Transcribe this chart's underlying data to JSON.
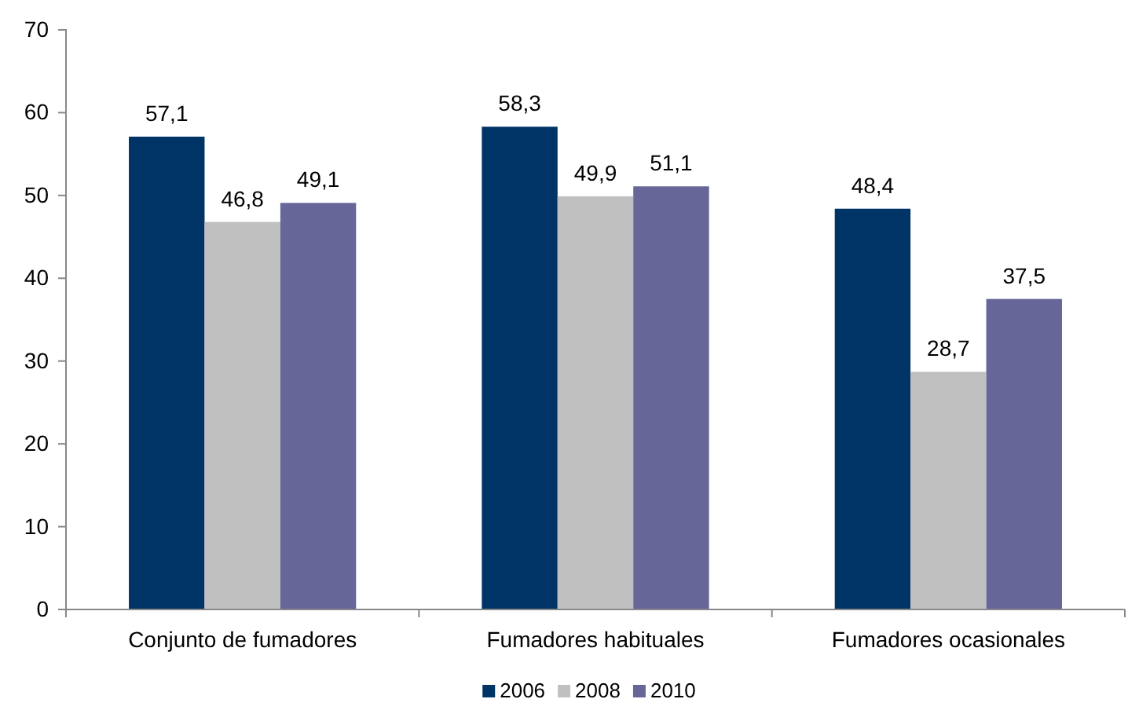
{
  "chart_data": {
    "type": "bar",
    "categories": [
      "Conjunto de fumadores",
      "Fumadores habituales",
      "Fumadores ocasionales"
    ],
    "series": [
      {
        "name": "2006",
        "color": "#003366",
        "values": [
          57.1,
          58.3,
          48.4
        ],
        "value_labels": [
          "57,1",
          "58,3",
          "48,4"
        ]
      },
      {
        "name": "2008",
        "color": "#c0c0c0",
        "values": [
          46.8,
          49.9,
          28.7
        ],
        "value_labels": [
          "46,8",
          "49,9",
          "28,7"
        ]
      },
      {
        "name": "2010",
        "color": "#666699",
        "values": [
          49.1,
          51.1,
          37.5
        ],
        "value_labels": [
          "49,1",
          "51,1",
          "37,5"
        ]
      }
    ],
    "ylim": [
      0,
      70
    ],
    "yticks": [
      0,
      10,
      20,
      30,
      40,
      50,
      60,
      70
    ],
    "grid": false,
    "legend": "bottom"
  }
}
